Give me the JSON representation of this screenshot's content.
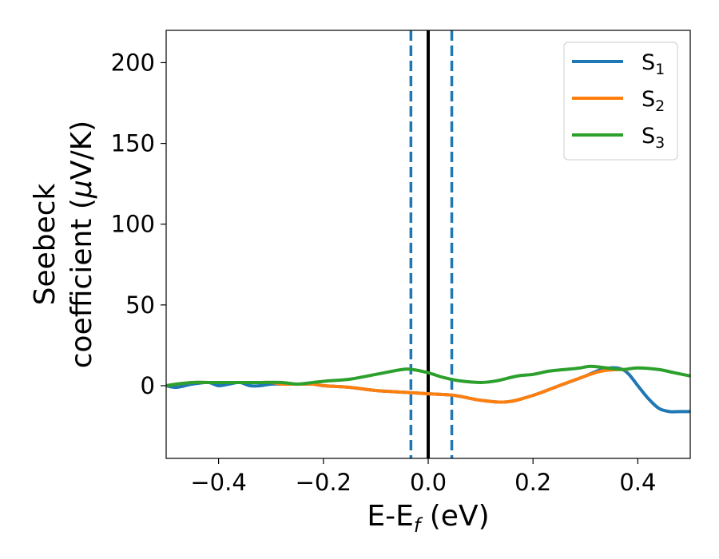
{
  "chart_data": {
    "type": "line",
    "xlabel": {
      "main": "E-E",
      "sub": "f",
      "rest": " (eV)"
    },
    "ylabel": {
      "line1": "Seebeck",
      "line2_pre": "coefficient  (",
      "mu": "μ",
      "line2_post": "V/K)"
    },
    "xlim": [
      -0.5,
      0.5
    ],
    "ylim": [
      -45,
      220
    ],
    "xticks": [
      -0.4,
      -0.2,
      0.0,
      0.2,
      0.4
    ],
    "xtick_labels": [
      "−0.4",
      "−0.2",
      "0.0",
      "0.2",
      "0.4"
    ],
    "yticks": [
      0,
      50,
      100,
      150,
      200
    ],
    "ytick_labels": [
      "0",
      "50",
      "100",
      "150",
      "200"
    ],
    "grid": false,
    "legend_position": "top-right",
    "vlines": [
      {
        "x": 0.0,
        "style": "solid",
        "color": "#000000"
      },
      {
        "x": -0.033,
        "style": "dashed",
        "color": "#1f77b4"
      },
      {
        "x": 0.045,
        "style": "dashed",
        "color": "#1f77b4"
      }
    ],
    "series": [
      {
        "name": "S",
        "sub": "1",
        "color": "#1f77b4",
        "x": [
          -0.5,
          -0.48,
          -0.45,
          -0.42,
          -0.4,
          -0.38,
          -0.36,
          -0.34,
          -0.32,
          -0.3,
          -0.28,
          -0.26,
          -0.24,
          -0.22,
          -0.2,
          -0.15,
          -0.1,
          -0.05,
          0.0,
          0.05,
          0.1,
          0.15,
          0.2,
          0.25,
          0.3,
          0.33,
          0.36,
          0.38,
          0.4,
          0.42,
          0.44,
          0.46,
          0.48,
          0.5
        ],
        "y": [
          0,
          -1,
          1,
          2,
          0,
          1,
          2,
          0,
          0,
          1,
          1,
          1,
          1,
          1,
          0,
          -1,
          -3,
          -4,
          -5,
          -6,
          -9,
          -10,
          -6,
          0,
          6,
          10,
          11,
          8,
          0,
          -8,
          -14,
          -16,
          -16,
          -16
        ]
      },
      {
        "name": "S",
        "sub": "2",
        "color": "#ff7f0e",
        "x": [
          -0.5,
          -0.48,
          -0.45,
          -0.42,
          -0.4,
          -0.38,
          -0.36,
          -0.34,
          -0.32,
          -0.3,
          -0.28,
          -0.26,
          -0.24,
          -0.22,
          -0.2,
          -0.15,
          -0.1,
          -0.05,
          0.0,
          0.05,
          0.1,
          0.15,
          0.2,
          0.25,
          0.3,
          0.33,
          0.36,
          0.38
        ],
        "y": [
          0,
          1,
          2,
          2,
          2,
          2,
          2,
          2,
          2,
          2,
          1,
          1,
          1,
          1,
          0,
          -1,
          -3,
          -4,
          -5,
          -6,
          -9,
          -10,
          -6,
          0,
          6,
          9,
          10,
          10
        ]
      },
      {
        "name": "S",
        "sub": "3",
        "color": "#2ca02c",
        "x": [
          -0.5,
          -0.48,
          -0.45,
          -0.42,
          -0.4,
          -0.36,
          -0.32,
          -0.28,
          -0.25,
          -0.22,
          -0.19,
          -0.15,
          -0.1,
          -0.05,
          -0.03,
          0.0,
          0.03,
          0.06,
          0.1,
          0.13,
          0.17,
          0.2,
          0.23,
          0.26,
          0.29,
          0.31,
          0.34,
          0.37,
          0.4,
          0.44,
          0.47,
          0.5
        ],
        "y": [
          0,
          1,
          2,
          2,
          2,
          2,
          2,
          2,
          1,
          2,
          3,
          4,
          7,
          10,
          10,
          8,
          5,
          3,
          2,
          3,
          6,
          7,
          9,
          10,
          11,
          12,
          11,
          10,
          11,
          10,
          8,
          6
        ]
      }
    ]
  }
}
